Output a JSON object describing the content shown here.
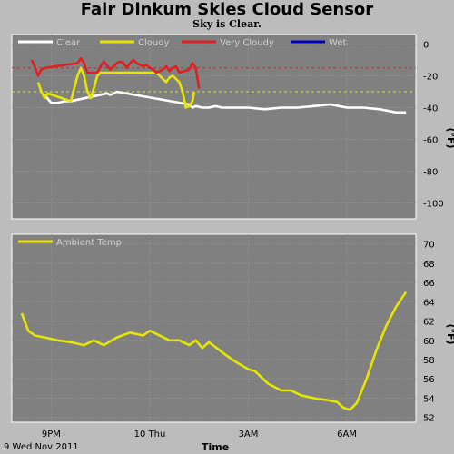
{
  "header": {
    "title": "Fair Dinkum Skies Cloud Sensor",
    "status": "Sky is Clear."
  },
  "chart_data": [
    {
      "type": "line",
      "panel": "sky",
      "ylabel": "(°F)",
      "ylim": [
        -110,
        6
      ],
      "yticks": [
        "0",
        "-20",
        "-40",
        "-60",
        "-80",
        "-100"
      ],
      "ytick_values": [
        0,
        -20,
        -40,
        -60,
        -80,
        -100
      ],
      "threshold_lines": [
        {
          "value": -15,
          "color": "#e02020"
        },
        {
          "value": -30,
          "color": "#e6e600"
        }
      ],
      "legend": [
        {
          "label": "Clear",
          "color": "#ffffff"
        },
        {
          "label": "Cloudy",
          "color": "#e6e600"
        },
        {
          "label": "Very Cloudy",
          "color": "#e02020"
        },
        {
          "label": "Wet",
          "color": "#0000cc"
        }
      ],
      "x_hours": [
        -3.6,
        -3.4,
        -3.2,
        -3.0,
        -2.8,
        -2.6,
        -2.4,
        -2.2,
        -2.0,
        -1.8,
        -1.6,
        -1.4,
        -1.2,
        -1.0,
        -0.8,
        -0.6,
        -0.4,
        -0.2,
        0.0,
        0.2,
        0.4,
        0.6,
        0.8,
        1.0,
        1.2,
        1.4,
        1.6,
        1.8,
        2.0,
        2.2,
        2.4,
        2.6,
        2.8,
        3.0,
        3.5,
        4.0,
        4.5,
        5.0,
        5.5,
        6.0,
        6.5,
        7.0,
        7.5,
        7.8
      ],
      "y_values": [
        -15,
        -20,
        -28,
        -37,
        -37,
        -36,
        -35,
        -25,
        -12,
        -32,
        -18,
        -15,
        -16,
        -12,
        -16,
        -12,
        -13,
        -18,
        -15,
        -20,
        -16,
        -22,
        -20,
        -40,
        -18,
        -38,
        -39,
        -40,
        -39,
        -40,
        -40,
        -40,
        -40,
        -40,
        -41,
        -40,
        -40,
        -39,
        -38,
        -40,
        -40,
        -41,
        -43,
        -43
      ],
      "series": [
        {
          "name": "Clear",
          "color": "#ffffff",
          "x_hours": [
            -3.2,
            -3.0,
            -2.8,
            -2.6,
            -2.4,
            -2.2,
            -1.3,
            -1.2,
            -1.1,
            -1.0,
            1.2,
            1.3,
            1.4,
            1.6,
            1.8,
            2.0,
            2.2,
            2.4,
            2.6,
            2.8,
            3.0,
            3.5,
            4.0,
            4.5,
            5.0,
            5.5,
            6.0,
            6.5,
            7.0,
            7.5,
            7.8
          ],
          "y_values": [
            -32,
            -37,
            -37,
            -36,
            -36,
            -35,
            -31,
            -32,
            -31,
            -30,
            -38,
            -40,
            -39,
            -40,
            -40,
            -39,
            -40,
            -40,
            -40,
            -40,
            -40,
            -41,
            -40,
            -40,
            -39,
            -38,
            -40,
            -40,
            -41,
            -43,
            -43
          ]
        },
        {
          "name": "Cloudy",
          "color": "#e6e600",
          "x_hours": [
            -3.4,
            -3.3,
            -3.2,
            -3.1,
            -2.4,
            -2.3,
            -2.2,
            -2.1,
            -2.0,
            -1.9,
            -1.8,
            -1.7,
            -1.6,
            -1.5,
            0.2,
            0.4,
            0.5,
            0.6,
            0.7,
            0.8,
            0.9,
            1.0,
            1.1,
            1.2,
            1.3,
            1.35
          ],
          "y_values": [
            -24,
            -30,
            -34,
            -31,
            -36,
            -28,
            -20,
            -15,
            -20,
            -30,
            -34,
            -28,
            -20,
            -18,
            -18,
            -22,
            -24,
            -21,
            -20,
            -22,
            -24,
            -30,
            -40,
            -39,
            -36,
            -30
          ]
        },
        {
          "name": "Very Cloudy",
          "color": "#e02020",
          "x_hours": [
            -3.6,
            -3.5,
            -3.4,
            -3.3,
            -3.2,
            -2.2,
            -2.1,
            -2.0,
            -1.9,
            -1.6,
            -1.5,
            -1.4,
            -1.2,
            -1.1,
            -1.0,
            -0.9,
            -0.8,
            -0.7,
            -0.6,
            -0.5,
            -0.4,
            -0.3,
            -0.2,
            -0.1,
            0.0,
            0.1,
            0.2,
            0.3,
            0.4,
            0.5,
            0.6,
            0.7,
            0.8,
            0.9,
            1.2,
            1.3,
            1.4,
            1.5
          ],
          "y_values": [
            -10,
            -14,
            -20,
            -16,
            -15,
            -12,
            -9,
            -12,
            -18,
            -18,
            -14,
            -11,
            -16,
            -14,
            -12,
            -11,
            -12,
            -15,
            -12,
            -10,
            -12,
            -13,
            -14,
            -13,
            -15,
            -16,
            -18,
            -17,
            -16,
            -14,
            -17,
            -15,
            -14,
            -18,
            -16,
            -12,
            -15,
            -28
          ]
        },
        {
          "name": "Wet",
          "color": "#0000cc",
          "x_hours": [],
          "y_values": []
        }
      ]
    },
    {
      "type": "line",
      "panel": "ambient",
      "ylabel": "(°F)",
      "ylim": [
        51.5,
        71
      ],
      "yticks": [
        "70",
        "68",
        "66",
        "64",
        "62",
        "60",
        "58",
        "56",
        "54",
        "52"
      ],
      "ytick_values": [
        70,
        68,
        66,
        64,
        62,
        60,
        58,
        56,
        54,
        52
      ],
      "series": [
        {
          "name": "Ambient Temp",
          "color": "#e6e600",
          "x_hours": [
            -3.9,
            -3.7,
            -3.5,
            -3.2,
            -2.8,
            -2.4,
            -2.0,
            -1.7,
            -1.4,
            -1.0,
            -0.6,
            -0.2,
            0.0,
            0.3,
            0.6,
            0.9,
            1.2,
            1.4,
            1.6,
            1.8,
            2.0,
            2.3,
            2.6,
            3.0,
            3.2,
            3.6,
            4.0,
            4.3,
            4.6,
            5.0,
            5.4,
            5.7,
            5.9,
            6.1,
            6.3,
            6.6,
            6.9,
            7.2,
            7.5,
            7.8
          ],
          "y_values": [
            62.8,
            61.0,
            60.5,
            60.3,
            60.0,
            59.8,
            59.5,
            60.0,
            59.5,
            60.3,
            60.8,
            60.5,
            61.0,
            60.5,
            60.0,
            60.0,
            59.5,
            60.0,
            59.2,
            59.8,
            59.3,
            58.5,
            57.8,
            57.0,
            56.8,
            55.5,
            54.8,
            54.8,
            54.3,
            54.0,
            53.8,
            53.6,
            53.0,
            52.8,
            53.5,
            56.0,
            59.0,
            61.5,
            63.5,
            65.0
          ]
        }
      ]
    }
  ],
  "x_axis": {
    "ticks": [
      "9PM",
      "10 Thu",
      "3AM",
      "6AM"
    ],
    "tick_hours": [
      -3.0,
      0.0,
      3.0,
      6.0
    ],
    "label": "Time",
    "date_label": "9 Wed Nov 2011"
  }
}
